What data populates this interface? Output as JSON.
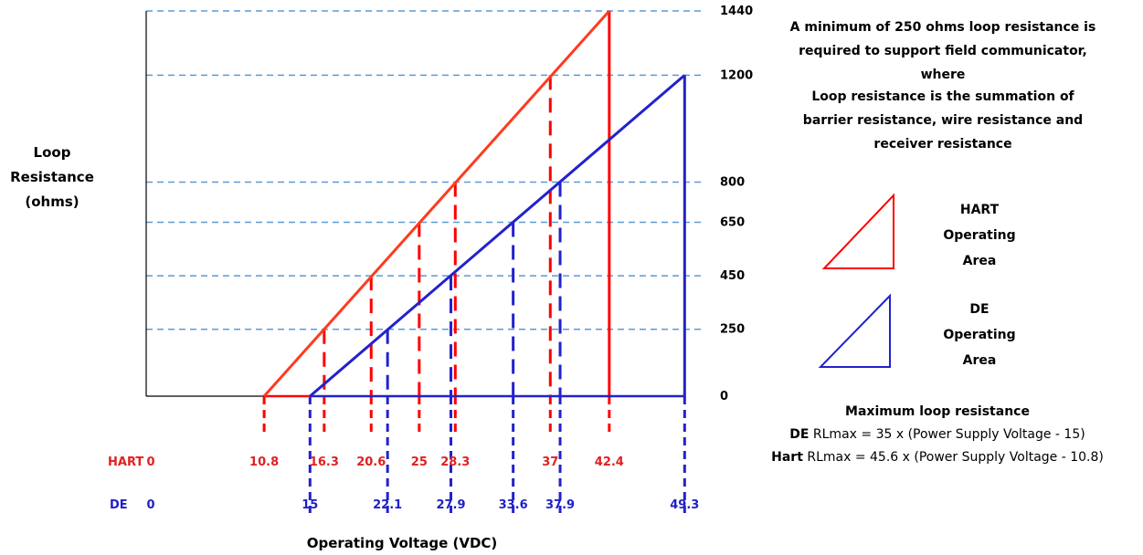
{
  "colors": {
    "hart": "#ff0000",
    "de": "#2222cc",
    "grid": "#5b9bd5",
    "axis": "#000000",
    "label_hart": "#e02020",
    "label_de": "#2020c8"
  },
  "labels": {
    "y_title": [
      "Loop",
      "Resistance",
      "(ohms)"
    ],
    "x_title": "Operating Voltage (VDC)",
    "hart_row": "HART",
    "de_row": "DE",
    "note": [
      "A minimum of 250 ohms loop resistance is",
      "required to support field communicator,",
      "where",
      "Loop resistance is the summation of",
      "barrier resistance, wire resistance and",
      "receiver resistance"
    ],
    "legend_hart": [
      "HART",
      "Operating",
      "Area"
    ],
    "legend_de": [
      "DE",
      "Operating",
      "Area"
    ],
    "max_title": "Maximum loop resistance",
    "formula_de_bold": "DE",
    "formula_de_rest": " RLmax = 35 x (Power Supply Voltage - 15)",
    "formula_hart_bold": "Hart",
    "formula_hart_rest": " RLmax = 45.6 x (Power Supply Voltage - 10.8)"
  },
  "chart_data": {
    "type": "line",
    "xlabel": "Operating Voltage (VDC)",
    "ylabel": "Loop Resistance (ohms)",
    "y_ticks": [
      0,
      250,
      450,
      650,
      800,
      1200,
      1440
    ],
    "series": [
      {
        "name": "HART",
        "x": [
          10.8,
          42.4
        ],
        "y": [
          0,
          1440
        ]
      },
      {
        "name": "DE",
        "x": [
          15,
          49.3
        ],
        "y": [
          0,
          1200
        ]
      }
    ],
    "hart_drops": [
      {
        "label": "0",
        "v": 0,
        "r": 0
      },
      {
        "label": "10.8",
        "v": 10.8,
        "r": 0
      },
      {
        "label": "16.3",
        "v": 16.3,
        "r": 250
      },
      {
        "label": "20.6",
        "v": 20.6,
        "r": 450
      },
      {
        "label": "25",
        "v": 25,
        "r": 650
      },
      {
        "label": "28.3",
        "v": 28.3,
        "r": 800
      },
      {
        "label": "37",
        "v": 37,
        "r": 1200
      },
      {
        "label": "42.4",
        "v": 42.4,
        "r": 1440
      }
    ],
    "de_drops": [
      {
        "label": "0",
        "v": 0,
        "r": 0
      },
      {
        "label": "15",
        "v": 15,
        "r": 0
      },
      {
        "label": "22.1",
        "v": 22.1,
        "r": 250
      },
      {
        "label": "27.9",
        "v": 27.9,
        "r": 450
      },
      {
        "label": "33.6",
        "v": 33.6,
        "r": 650
      },
      {
        "label": "37.9",
        "v": 37.9,
        "r": 800
      },
      {
        "label": "49.3",
        "v": 49.3,
        "r": 1200
      }
    ]
  }
}
